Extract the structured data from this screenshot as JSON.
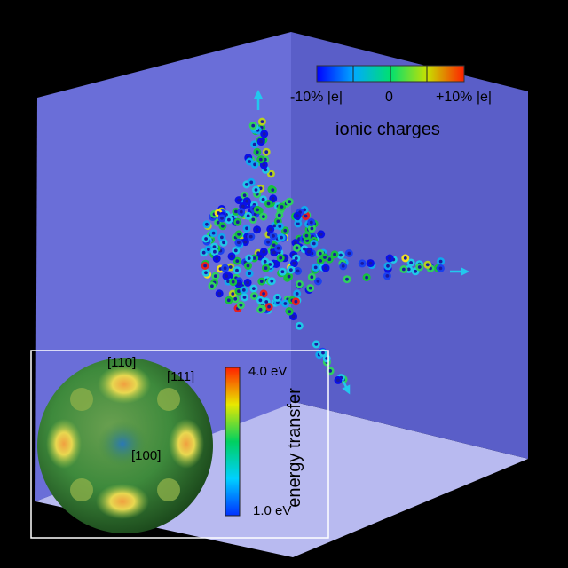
{
  "charge_colorbar": {
    "min_label": "-10% |e|",
    "mid_label": "0",
    "max_label": "+10% |e|",
    "title": "ionic charges",
    "min_value": -10,
    "max_value": 10,
    "unit": "% |e|"
  },
  "inset": {
    "directions": [
      "[110]",
      "[111]",
      "[100]"
    ],
    "colorbar_max": "4.0 eV",
    "colorbar_min": "1.0 eV",
    "colorbar_title": "energy transfer",
    "max_value": 4.0,
    "min_value": 1.0,
    "unit": "eV"
  },
  "colors": {
    "background": "#000000",
    "box_back_wall": "#6a6ed8",
    "box_right_wall": "#5a5ec8",
    "box_floor": "#b8baf0",
    "arrow": "#22c8ee",
    "inset_border": "#ffffff"
  },
  "arrows": [
    "up",
    "right",
    "down"
  ]
}
